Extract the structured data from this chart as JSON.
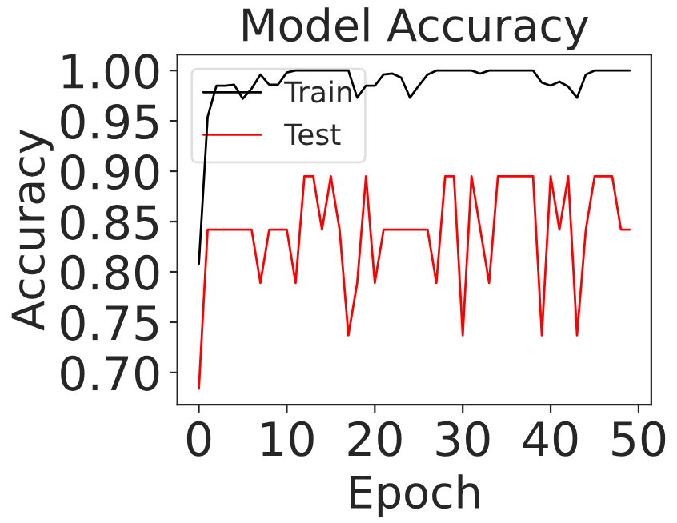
{
  "chart_data": {
    "type": "line",
    "title": "Model Accuracy",
    "xlabel": "Epoch",
    "ylabel": "Accuracy",
    "x": [
      0,
      1,
      2,
      3,
      4,
      5,
      6,
      7,
      8,
      9,
      10,
      11,
      12,
      13,
      14,
      15,
      16,
      17,
      18,
      19,
      20,
      21,
      22,
      23,
      24,
      25,
      26,
      27,
      28,
      29,
      30,
      31,
      32,
      33,
      34,
      35,
      36,
      37,
      38,
      39,
      40,
      41,
      42,
      43,
      44,
      45,
      46,
      47,
      48,
      49
    ],
    "series": [
      {
        "name": "Train",
        "color": "#000000",
        "values": [
          0.808,
          0.954,
          0.985,
          0.985,
          0.986,
          0.972,
          0.982,
          0.996,
          0.986,
          0.986,
          0.998,
          1.0,
          1.0,
          1.0,
          1.0,
          1.0,
          1.0,
          1.0,
          0.973,
          0.985,
          0.985,
          0.996,
          0.997,
          0.993,
          0.973,
          0.985,
          0.996,
          1.0,
          1.0,
          1.0,
          1.0,
          1.0,
          0.997,
          1.0,
          1.0,
          1.0,
          1.0,
          1.0,
          1.0,
          0.988,
          0.985,
          0.989,
          0.984,
          0.973,
          0.996,
          1.0,
          1.0,
          1.0,
          1.0,
          1.0
        ]
      },
      {
        "name": "Test",
        "color": "#ff0000",
        "values": [
          0.684,
          0.842,
          0.842,
          0.842,
          0.842,
          0.842,
          0.842,
          0.789,
          0.842,
          0.842,
          0.842,
          0.789,
          0.895,
          0.895,
          0.842,
          0.895,
          0.842,
          0.737,
          0.789,
          0.895,
          0.789,
          0.842,
          0.842,
          0.842,
          0.842,
          0.842,
          0.842,
          0.789,
          0.895,
          0.895,
          0.737,
          0.895,
          0.842,
          0.789,
          0.895,
          0.895,
          0.895,
          0.895,
          0.895,
          0.737,
          0.895,
          0.842,
          0.895,
          0.737,
          0.842,
          0.895,
          0.895,
          0.895,
          0.842,
          0.842
        ]
      }
    ],
    "xlim": [
      -2.45,
      51.45
    ],
    "xticks": [
      0,
      10,
      20,
      30,
      40,
      50
    ],
    "ylim": [
      0.668,
      1.016
    ],
    "yticks": [
      {
        "value": 0.7,
        "label": "0.70"
      },
      {
        "value": 0.75,
        "label": "0.75"
      },
      {
        "value": 0.8,
        "label": "0.80"
      },
      {
        "value": 0.85,
        "label": "0.85"
      },
      {
        "value": 0.9,
        "label": "0.90"
      },
      {
        "value": 0.95,
        "label": "0.95"
      },
      {
        "value": 1.0,
        "label": "1.00"
      }
    ],
    "legend": "top left",
    "grid": false,
    "marker": "none",
    "line_style": "solid"
  }
}
